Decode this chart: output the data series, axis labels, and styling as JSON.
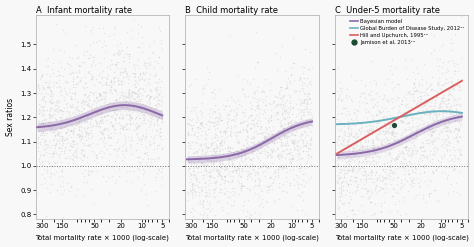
{
  "title_A": "A  Infant mortality rate",
  "title_B": "B  Child mortality rate",
  "title_C": "C  Under-5 mortality rate",
  "xlabel": "Total mortality rate × 1000 (log-scale)",
  "ylabel": "Sex ratios",
  "xtick_labels": [
    "300",
    "150",
    "50",
    "20",
    "10",
    "5"
  ],
  "xtick_vals": [
    300,
    150,
    50,
    20,
    10,
    5
  ],
  "ylim": [
    0.78,
    1.62
  ],
  "yticks": [
    0.8,
    0.9,
    1.0,
    1.1,
    1.2,
    1.3,
    1.4,
    1.5
  ],
  "ytick_labels": [
    "0.8",
    "0.9",
    "1.0",
    "1.1",
    "1.2",
    "1.3",
    "1.4",
    "1.5"
  ],
  "scatter_color": "#c0c0c0",
  "scatter_alpha": 0.35,
  "scatter_size": 1.2,
  "curve_A_color": "#8b68a8",
  "curve_B_color": "#8b68a8",
  "curve_C_bayesian_color": "#8b68a8",
  "curve_C_gbd_color": "#6ab0be",
  "curve_C_hill_color": "#d96060",
  "curve_C_jamison_color": "#1a4a30",
  "dashed_line_y": 1.0,
  "legend_labels": [
    "Bayesian model",
    "Global Burden of Disease Study, 2012¹¹",
    "Hill and Upchurch, 1995¹⁴",
    "Jamison et al, 2013¹⁴"
  ],
  "background_color": "#f8f8f8"
}
